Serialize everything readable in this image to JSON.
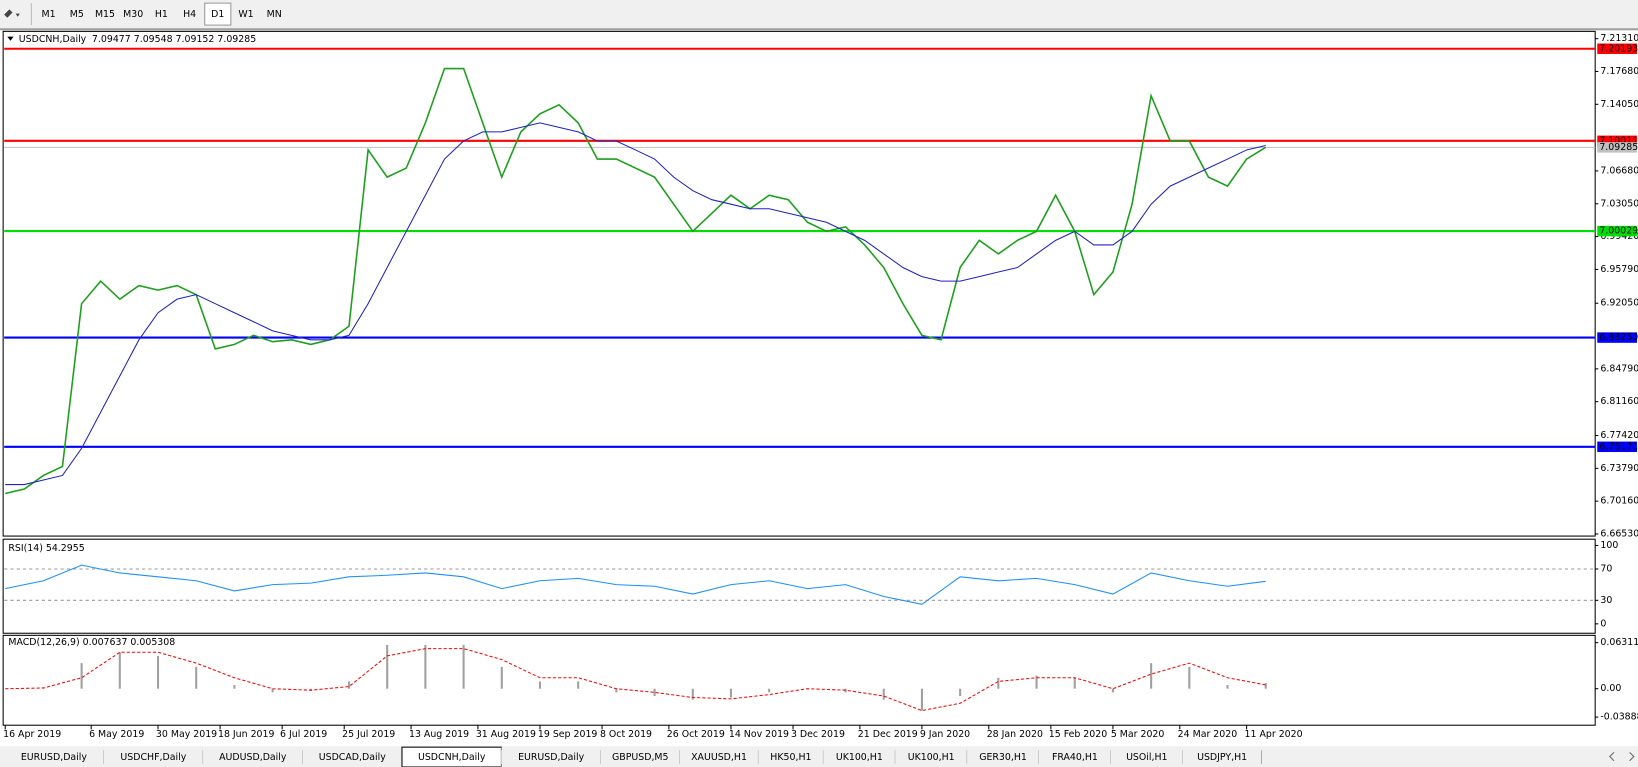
{
  "toolbar": {
    "timeframes": [
      "M1",
      "M5",
      "M15",
      "M30",
      "H1",
      "H4",
      "D1",
      "W1",
      "MN"
    ],
    "active": "D1"
  },
  "tabs": [
    "EURUSD,Daily",
    "USDCHF,Daily",
    "AUDUSD,Daily",
    "USDCAD,Daily",
    "USDCNH,Daily",
    "EURUSD,Daily",
    "GBPUSD,M5",
    "XAUUSD,H1",
    "HK50,H1",
    "UK100,H1",
    "UK100,H1",
    "GER30,H1",
    "FRA40,H1",
    "USOil,H1",
    "USDJPY,H1"
  ],
  "active_tab": "USDCNH,Daily",
  "chart_data": [
    {
      "type": "line",
      "title": "USDCNH,Daily",
      "ohlc_label": "7.09477 7.09548 7.09152 7.09285",
      "x": [
        0,
        4,
        8,
        12,
        16,
        20,
        24,
        28,
        32,
        36,
        40,
        44,
        48,
        52,
        56,
        60,
        64,
        68,
        72,
        76,
        80,
        84,
        88,
        92,
        96,
        100,
        104,
        108,
        112,
        116,
        120,
        124,
        128,
        132,
        136,
        140,
        144,
        148,
        152,
        156,
        160,
        164,
        168,
        172,
        176,
        180,
        184,
        188,
        192,
        196,
        200,
        204,
        208,
        212,
        216,
        220,
        224,
        228,
        232,
        236,
        240,
        244,
        248,
        252,
        256,
        260,
        264
      ],
      "xlim": [
        0,
        333
      ],
      "xticks": [
        {
          "value": 0,
          "label": "16 Apr 2019"
        },
        {
          "value": 18,
          "label": "6 May 2019"
        },
        {
          "value": 32,
          "label": "30 May 2019"
        },
        {
          "value": 45,
          "label": "18 Jun 2019"
        },
        {
          "value": 58,
          "label": "6 Jul 2019"
        },
        {
          "value": 71,
          "label": "25 Jul 2019"
        },
        {
          "value": 85,
          "label": "13 Aug 2019"
        },
        {
          "value": 99,
          "label": "31 Aug 2019"
        },
        {
          "value": 112,
          "label": "19 Sep 2019"
        },
        {
          "value": 125,
          "label": "8 Oct 2019"
        },
        {
          "value": 139,
          "label": "26 Oct 2019"
        },
        {
          "value": 152,
          "label": "14 Nov 2019"
        },
        {
          "value": 165,
          "label": "3 Dec 2019"
        },
        {
          "value": 179,
          "label": "21 Dec 2019"
        },
        {
          "value": 192,
          "label": "9 Jan 2020"
        },
        {
          "value": 206,
          "label": "28 Jan 2020"
        },
        {
          "value": 219,
          "label": "15 Feb 2020"
        },
        {
          "value": 232,
          "label": "5 Mar 2020"
        },
        {
          "value": 246,
          "label": "24 Mar 2020"
        },
        {
          "value": 260,
          "label": "11 Apr 2020"
        }
      ],
      "ylim": [
        6.6653,
        7.2131
      ],
      "yticks": [
        {
          "value": 7.2131,
          "label": "7.21310"
        },
        {
          "value": 7.1768,
          "label": "7.17680"
        },
        {
          "value": 7.1405,
          "label": "7.14050"
        },
        {
          "value": 7.0668,
          "label": "7.06680"
        },
        {
          "value": 7.0305,
          "label": "7.03050"
        },
        {
          "value": 6.9942,
          "label": "6.99420"
        },
        {
          "value": 6.9579,
          "label": "6.95790"
        },
        {
          "value": 6.9205,
          "label": "6.92050"
        },
        {
          "value": 6.8479,
          "label": "6.84790"
        },
        {
          "value": 6.8116,
          "label": "6.81160"
        },
        {
          "value": 6.7742,
          "label": "6.77420"
        },
        {
          "value": 6.7379,
          "label": "6.73790"
        },
        {
          "value": 6.7016,
          "label": "6.70160"
        },
        {
          "value": 6.6653,
          "label": "6.66530"
        }
      ],
      "series": [
        {
          "color": "#1aa01a",
          "values": [
            6.71,
            6.715,
            6.73,
            6.74,
            6.92,
            6.945,
            6.925,
            6.94,
            6.935,
            6.94,
            6.93,
            6.87,
            6.875,
            6.885,
            6.878,
            6.88,
            6.875,
            6.88,
            6.895,
            7.09,
            7.06,
            7.07,
            7.12,
            7.18,
            7.18,
            7.12,
            7.06,
            7.11,
            7.13,
            7.14,
            7.12,
            7.08,
            7.08,
            7.07,
            7.06,
            7.03,
            7.0,
            7.02,
            7.04,
            7.025,
            7.04,
            7.035,
            7.01,
            7.0,
            7.005,
            6.985,
            6.96,
            6.92,
            6.885,
            6.88,
            6.96,
            6.99,
            6.975,
            6.99,
            7.0,
            7.04,
            7.0,
            6.93,
            6.955,
            7.03,
            7.15,
            7.1,
            7.1,
            7.06,
            7.05,
            7.08,
            7.09285
          ]
        },
        {
          "color": "#2020c8",
          "values": [
            6.72,
            6.72,
            6.725,
            6.73,
            6.76,
            6.8,
            6.84,
            6.88,
            6.91,
            6.925,
            6.93,
            6.92,
            6.91,
            6.9,
            6.89,
            6.885,
            6.88,
            6.88,
            6.885,
            6.92,
            6.96,
            7.0,
            7.04,
            7.08,
            7.1,
            7.11,
            7.11,
            7.115,
            7.12,
            7.115,
            7.11,
            7.1,
            7.1,
            7.09,
            7.08,
            7.06,
            7.045,
            7.035,
            7.03,
            7.025,
            7.025,
            7.02,
            7.015,
            7.01,
            7.0,
            6.99,
            6.975,
            6.96,
            6.95,
            6.945,
            6.945,
            6.95,
            6.955,
            6.96,
            6.975,
            6.99,
            7.0,
            6.985,
            6.985,
            7.0,
            7.03,
            7.05,
            7.06,
            7.07,
            7.08,
            7.09,
            7.095
          ]
        }
      ],
      "levels": [
        {
          "value": 7.20193,
          "label": "7.20193",
          "color": "#ff0000"
        },
        {
          "value": 7.10011,
          "label": "7.10011",
          "color": "#ff0000"
        },
        {
          "value": 7.09285,
          "label": "7.09285",
          "color": "#c0c0c0"
        },
        {
          "value": 7.00029,
          "label": "7.00029",
          "color": "#00e000"
        },
        {
          "value": 6.8825,
          "label": "6.88250",
          "color": "#0000ff"
        },
        {
          "value": 6.76171,
          "label": "6.76171",
          "color": "#0000ff"
        }
      ]
    },
    {
      "type": "rsi",
      "title": "RSI(14) 54.2955",
      "x": [
        0,
        8,
        16,
        24,
        32,
        40,
        48,
        56,
        64,
        72,
        80,
        88,
        96,
        104,
        112,
        120,
        128,
        136,
        144,
        152,
        160,
        168,
        176,
        184,
        192,
        200,
        208,
        216,
        224,
        232,
        240,
        248,
        256,
        264
      ],
      "xlim": [
        0,
        333
      ],
      "ylim": [
        0,
        100
      ],
      "yticks": [
        100,
        70,
        30,
        0
      ],
      "levels": [
        70,
        30
      ],
      "series": [
        {
          "color": "#1e90ff",
          "values": [
            45,
            55,
            75,
            65,
            60,
            55,
            42,
            50,
            52,
            60,
            62,
            65,
            60,
            45,
            55,
            58,
            50,
            48,
            38,
            50,
            55,
            45,
            50,
            35,
            25,
            60,
            55,
            58,
            50,
            38,
            65,
            55,
            48,
            54.2955
          ]
        }
      ]
    },
    {
      "type": "macd",
      "title": "MACD(12,26,9) 0.007637 0.005308",
      "x": [
        0,
        8,
        16,
        24,
        32,
        40,
        48,
        56,
        64,
        72,
        80,
        88,
        96,
        104,
        112,
        120,
        128,
        136,
        144,
        152,
        160,
        168,
        176,
        184,
        192,
        200,
        208,
        216,
        224,
        232,
        240,
        248,
        256,
        264
      ],
      "xlim": [
        0,
        333
      ],
      "ylim": [
        -0.04,
        0.066
      ],
      "yticks": [
        0.063113,
        {
          "value": 0,
          "label": "0.00"
        },
        -0.038887
      ],
      "series": [
        {
          "color": "#a0a0a0",
          "values": [
            0,
            0.002,
            0.035,
            0.05,
            0.045,
            0.03,
            0.005,
            -0.005,
            -0.003,
            0.01,
            0.06,
            0.06,
            0.06,
            0.03,
            0.01,
            0.01,
            -0.005,
            -0.01,
            -0.015,
            -0.012,
            -0.005,
            0,
            -0.005,
            -0.015,
            -0.03,
            -0.01,
            0.015,
            0.018,
            0.015,
            -0.005,
            0.035,
            0.03,
            0.005,
            0.007637
          ]
        },
        {
          "color": "#ff0000",
          "values": [
            0,
            0.001,
            0.015,
            0.05,
            0.05,
            0.035,
            0.015,
            0,
            -0.002,
            0.003,
            0.045,
            0.055,
            0.055,
            0.04,
            0.015,
            0.015,
            0,
            -0.005,
            -0.012,
            -0.014,
            -0.008,
            0,
            -0.002,
            -0.01,
            -0.03,
            -0.02,
            0.01,
            0.015,
            0.015,
            0,
            0.02,
            0.035,
            0.015,
            0.005308
          ]
        }
      ]
    }
  ]
}
